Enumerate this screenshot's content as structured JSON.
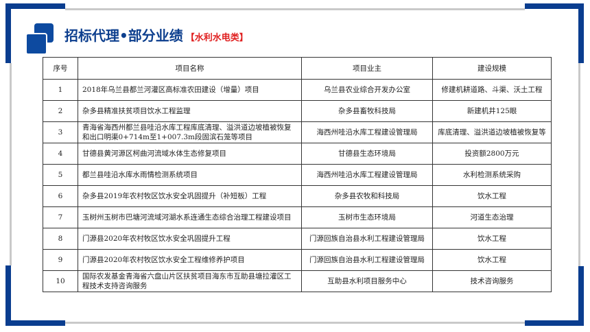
{
  "header": {
    "title": "招标代理•部分业绩",
    "subtitle": "【水利水电类】"
  },
  "colors": {
    "brand_blue": "#0a3d8f",
    "subtitle_red": "#e02020"
  },
  "table": {
    "columns": [
      "序号",
      "项目名称",
      "项目业主",
      "建设规模"
    ],
    "rows": [
      {
        "no": "1",
        "name": "2018年乌兰县都兰河灌区高标准农田建设（增量）项目",
        "owner": "乌兰县农业综合开发办公室",
        "scale": "修建机耕道路、斗渠、沃土工程"
      },
      {
        "no": "2",
        "name": "杂多县精准扶贫项目饮水工程监理",
        "owner": "杂多县畜牧科技局",
        "scale": "新建机井125眼"
      },
      {
        "no": "3",
        "name": "青海省海西州都兰县哇沿水库工程库底清理、溢洪道边坡植被恢复和出口明渠0+714m至1+007.3m段固滨石笼等项目",
        "owner": "海西州哇沿水库工程建设管理局",
        "scale": "库底清理、溢洪道边坡植被恢复等"
      },
      {
        "no": "4",
        "name": "甘德县黄河源区柯曲河流域水体生态修复项目",
        "owner": "甘德县生态环境局",
        "scale": "投资额2800万元"
      },
      {
        "no": "5",
        "name": "都兰县哇沿水库水雨情检测系统项目",
        "owner": "海西州哇沿水库工程建设管理局",
        "scale": "水利检测系统采购"
      },
      {
        "no": "6",
        "name": "杂多县2019年农村牧区饮水安全巩固提升（补短板）工程",
        "owner": "杂多县农牧和科技局",
        "scale": "饮水工程"
      },
      {
        "no": "7",
        "name": "玉树州玉树市巴塘河流域河湖水系连通生态综合治理工程建设项目",
        "owner": "玉树市生态环境局",
        "scale": "河道生态治理"
      },
      {
        "no": "8",
        "name": "门源县2020年农村牧区饮水安全巩固提升工程",
        "owner": "门源回族自治县水利工程建设管理局",
        "scale": "饮水工程"
      },
      {
        "no": "9",
        "name": "门源县2020年农村牧区饮水安全工程维修养护项目",
        "owner": "门源回族自治县水利工程建设管理局",
        "scale": "饮水工程"
      },
      {
        "no": "10",
        "name": "国际农发基金青海省六盘山片区扶贫项目海东市互助县塘拉灌区工程技术支持咨询服务",
        "owner": "互助县水利项目服务中心",
        "scale": "技术咨询服务"
      }
    ]
  }
}
